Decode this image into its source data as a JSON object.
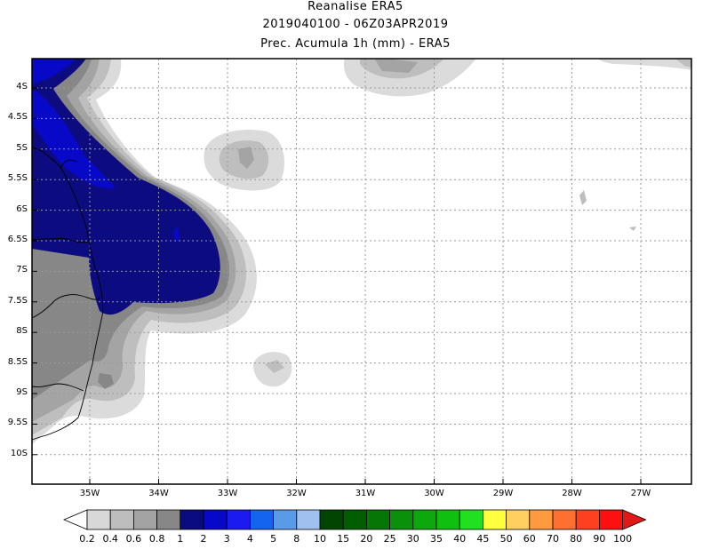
{
  "header": {
    "line1": "Reanalise ERA5",
    "line2": "2019040100 - 06Z03APR2019",
    "line3": "Prec. Acumula 1h (mm) - ERA5"
  },
  "axes": {
    "lat_labels": [
      "4S",
      "4.5S",
      "5S",
      "5.5S",
      "6S",
      "6.5S",
      "7S",
      "7.5S",
      "8S",
      "8.5S",
      "9S",
      "9.5S",
      "10S"
    ],
    "lon_labels": [
      "35W",
      "34W",
      "33W",
      "32W",
      "31W",
      "30W",
      "29W",
      "28W",
      "27W"
    ],
    "lon_range": [
      -35.8,
      -26.0
    ],
    "lat_range": [
      -10.5,
      -3.5
    ]
  },
  "colorbar": {
    "labels": [
      "0.2",
      "0.4",
      "0.6",
      "0.8",
      "1",
      "2",
      "3",
      "4",
      "5",
      "8",
      "10",
      "15",
      "20",
      "25",
      "30",
      "35",
      "40",
      "45",
      "50",
      "60",
      "70",
      "80",
      "90",
      "100"
    ],
    "colors": [
      "#ffffff",
      "#d8d8d8",
      "#bdbdbd",
      "#a3a3a3",
      "#878787",
      "#0b0b80",
      "#0808c8",
      "#1b1bf0",
      "#1464f0",
      "#5a9be8",
      "#a0c0f0",
      "#024402",
      "#025c02",
      "#067606",
      "#0a900a",
      "#0ca80c",
      "#10c010",
      "#20e020",
      "#ffff40",
      "#ffd060",
      "#ff9a40",
      "#ff7030",
      "#ff4020",
      "#ff1010",
      "#e01818"
    ]
  },
  "precip_colors": {
    "c02": "#dbdbdb",
    "c04": "#bebebe",
    "c06": "#a4a4a4",
    "c08": "#878787",
    "c1": "#0c0c80",
    "c2": "#0808c8"
  }
}
